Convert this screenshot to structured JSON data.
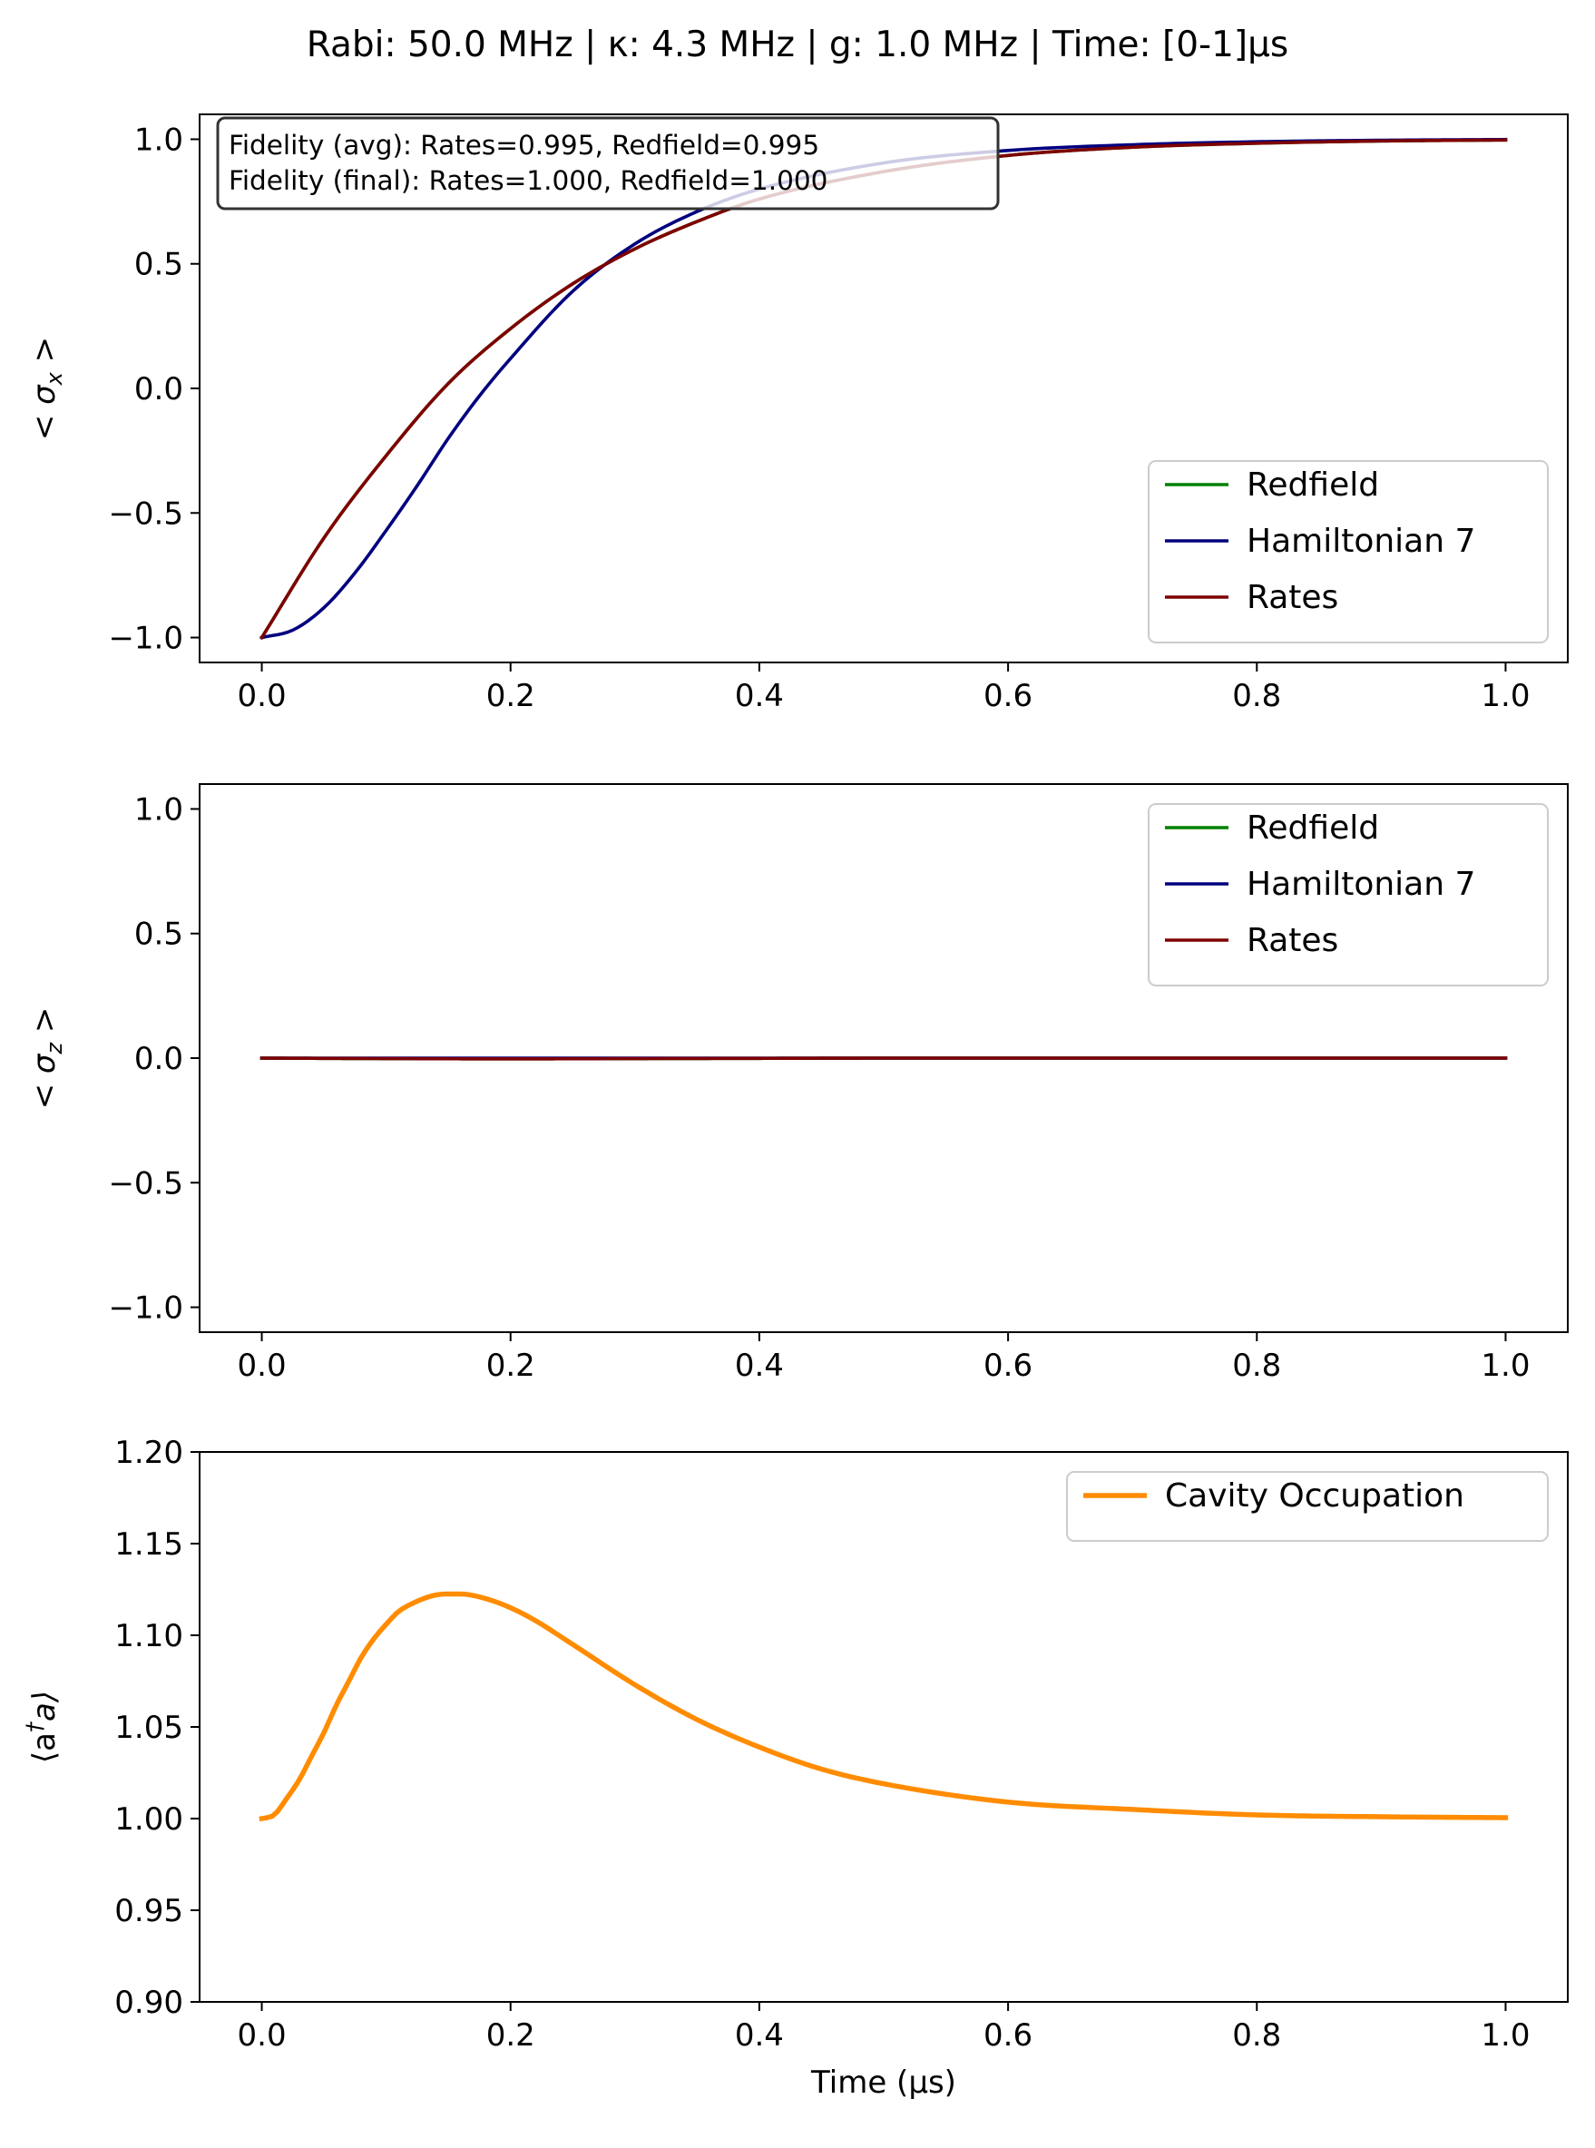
{
  "figure": {
    "suptitle": "Rabi: 50.0 MHz | κ: 4.3 MHz | g: 1.0 MHz | Time: [0-1]μs"
  },
  "chart_data": [
    {
      "type": "line",
      "id": "sigma-x",
      "ylabel": "< σ_x >",
      "ylabel_main": "< σ",
      "ylabel_sub": "x",
      "ylabel_end": " >",
      "xlabel": "",
      "xlim": [
        -0.05,
        1.05
      ],
      "ylim": [
        -1.1,
        1.1
      ],
      "xticks": [
        0.0,
        0.2,
        0.4,
        0.6,
        0.8,
        1.0
      ],
      "xtick_labels": [
        "0.0",
        "0.2",
        "0.4",
        "0.6",
        "0.8",
        "1.0"
      ],
      "yticks": [
        -1.0,
        -0.5,
        0.0,
        0.5,
        1.0
      ],
      "ytick_labels": [
        "−1.0",
        "−0.5",
        "0.0",
        "0.5",
        "1.0"
      ],
      "annotation": [
        "Fidelity (avg): Rates=0.995, Redfield=0.995",
        "Fidelity (final): Rates=1.000, Redfield=1.000"
      ],
      "legend_position": "lower-right",
      "series": [
        {
          "name": "Redfield",
          "color": "#008000",
          "x": [
            0,
            0.05,
            0.1,
            0.15,
            0.2,
            0.25,
            0.3,
            0.35,
            0.4,
            0.5,
            0.6,
            0.7,
            0.8,
            0.9,
            1.0
          ],
          "y": [
            -1.0,
            -0.6,
            -0.27,
            0.02,
            0.24,
            0.42,
            0.56,
            0.67,
            0.76,
            0.87,
            0.935,
            0.968,
            0.984,
            0.993,
            0.997
          ]
        },
        {
          "name": "Hamiltonian 7",
          "color": "#00007f",
          "x": [
            0,
            0.025,
            0.05,
            0.075,
            0.1,
            0.125,
            0.15,
            0.175,
            0.2,
            0.25,
            0.3,
            0.35,
            0.4,
            0.5,
            0.6,
            0.7,
            0.8,
            0.9,
            1.0
          ],
          "y": [
            -1.0,
            -0.97,
            -0.88,
            -0.74,
            -0.57,
            -0.39,
            -0.2,
            -0.03,
            0.12,
            0.39,
            0.58,
            0.71,
            0.8,
            0.905,
            0.955,
            0.978,
            0.99,
            0.996,
            0.999
          ]
        },
        {
          "name": "Rates",
          "color": "#7f0000",
          "x": [
            0,
            0.05,
            0.1,
            0.15,
            0.2,
            0.25,
            0.3,
            0.35,
            0.4,
            0.5,
            0.6,
            0.7,
            0.8,
            0.9,
            1.0
          ],
          "y": [
            -1.0,
            -0.6,
            -0.27,
            0.02,
            0.24,
            0.42,
            0.56,
            0.67,
            0.76,
            0.87,
            0.935,
            0.968,
            0.984,
            0.993,
            0.997
          ]
        }
      ]
    },
    {
      "type": "line",
      "id": "sigma-z",
      "ylabel": "< σ_z >",
      "ylabel_main": "< σ",
      "ylabel_sub": "z",
      "ylabel_end": " >",
      "xlabel": "",
      "xlim": [
        -0.05,
        1.05
      ],
      "ylim": [
        -1.1,
        1.1
      ],
      "xticks": [
        0.0,
        0.2,
        0.4,
        0.6,
        0.8,
        1.0
      ],
      "xtick_labels": [
        "0.0",
        "0.2",
        "0.4",
        "0.6",
        "0.8",
        "1.0"
      ],
      "yticks": [
        -1.0,
        -0.5,
        0.0,
        0.5,
        1.0
      ],
      "ytick_labels": [
        "−1.0",
        "−0.5",
        "0.0",
        "0.5",
        "1.0"
      ],
      "legend_position": "upper-right",
      "series": [
        {
          "name": "Redfield",
          "color": "#008000",
          "x": [
            0,
            0.1,
            0.2,
            0.3,
            0.4,
            0.5,
            0.6,
            0.7,
            0.8,
            0.9,
            1.0
          ],
          "y": [
            0,
            -0.002,
            -0.003,
            -0.002,
            -0.001,
            0,
            0,
            0,
            0,
            0,
            0
          ]
        },
        {
          "name": "Hamiltonian 7",
          "color": "#00007f",
          "x": [
            0,
            0.1,
            0.2,
            0.3,
            0.4,
            0.5,
            0.6,
            0.7,
            0.8,
            0.9,
            1.0
          ],
          "y": [
            0,
            0,
            0,
            0,
            0,
            0,
            0,
            0,
            0,
            0,
            0
          ]
        },
        {
          "name": "Rates",
          "color": "#7f0000",
          "x": [
            0,
            0.1,
            0.2,
            0.3,
            0.4,
            0.5,
            0.6,
            0.7,
            0.8,
            0.9,
            1.0
          ],
          "y": [
            0,
            -0.002,
            -0.003,
            -0.002,
            -0.001,
            0,
            0,
            0,
            0,
            0,
            0
          ]
        }
      ]
    },
    {
      "type": "line",
      "id": "cavity",
      "ylabel": "⟨a†a⟩",
      "ylabel_main": "⟨a",
      "ylabel_sub": "†",
      "ylabel_end": "a⟩",
      "xlabel": "Time (μs)",
      "xlim": [
        -0.05,
        1.05
      ],
      "ylim": [
        0.9,
        1.2
      ],
      "xticks": [
        0.0,
        0.2,
        0.4,
        0.6,
        0.8,
        1.0
      ],
      "xtick_labels": [
        "0.0",
        "0.2",
        "0.4",
        "0.6",
        "0.8",
        "1.0"
      ],
      "yticks": [
        0.9,
        0.95,
        1.0,
        1.05,
        1.1,
        1.15,
        1.2
      ],
      "ytick_labels": [
        "0.90",
        "0.95",
        "1.00",
        "1.05",
        "1.10",
        "1.15",
        "1.20"
      ],
      "legend_position": "upper-right",
      "series": [
        {
          "name": "Cavity Occupation",
          "color": "#ff8c00",
          "x": [
            0,
            0.01,
            0.02,
            0.03,
            0.04,
            0.05,
            0.06,
            0.07,
            0.08,
            0.09,
            0.1,
            0.11,
            0.12,
            0.13,
            0.14,
            0.15,
            0.16,
            0.18,
            0.2,
            0.22,
            0.25,
            0.3,
            0.35,
            0.4,
            0.45,
            0.5,
            0.6,
            0.7,
            0.8,
            0.9,
            1.0
          ],
          "y": [
            1.0,
            1.002,
            1.011,
            1.021,
            1.034,
            1.047,
            1.062,
            1.075,
            1.088,
            1.098,
            1.106,
            1.113,
            1.117,
            1.12,
            1.122,
            1.1225,
            1.1225,
            1.12,
            1.115,
            1.108,
            1.095,
            1.073,
            1.054,
            1.039,
            1.027,
            1.019,
            1.009,
            1.005,
            1.002,
            1.001,
            1.0005
          ]
        }
      ]
    }
  ]
}
